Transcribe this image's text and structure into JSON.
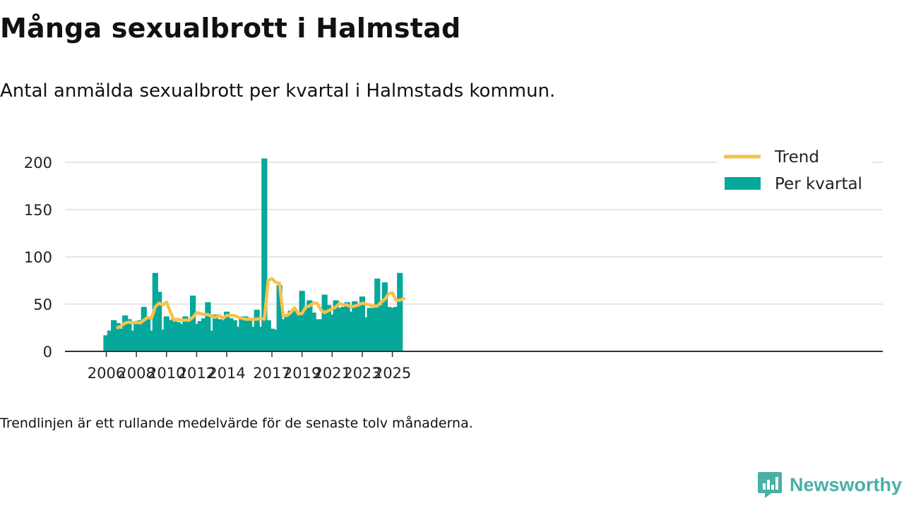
{
  "title": "Många sexualbrott i Halmstad",
  "subtitle": "Antal anmälda sexualbrott per kvartal i Halmstads kommun.",
  "footnote": "Trendlinjen är ett rullande medelvärde för de senaste tolv månaderna.",
  "brand": "Newsworthy",
  "colors": {
    "bar": "#05a89a",
    "trend": "#f5c24c",
    "brand": "#49b0a6"
  },
  "chart_data": {
    "type": "bar",
    "title": "Många sexualbrott i Halmstad",
    "xlabel": "",
    "ylabel": "",
    "ylim": [
      0,
      210
    ],
    "yticks": [
      0,
      50,
      100,
      150,
      200
    ],
    "grid": true,
    "legend_position": "top-right",
    "x_tick_labels": [
      {
        "label": "2006",
        "quarter": 0
      },
      {
        "label": "2008",
        "quarter": 8
      },
      {
        "label": "2010",
        "quarter": 16
      },
      {
        "label": "2012",
        "quarter": 24
      },
      {
        "label": "2014",
        "quarter": 32
      },
      {
        "label": "2017",
        "quarter": 44
      },
      {
        "label": "2019",
        "quarter": 52
      },
      {
        "label": "2021",
        "quarter": 60
      },
      {
        "label": "2023",
        "quarter": 68
      },
      {
        "label": "2025",
        "quarter": 76
      }
    ],
    "series": [
      {
        "name": "Per kvartal",
        "kind": "bar",
        "start_quarter": 0,
        "values": [
          17,
          22,
          33,
          30,
          24,
          38,
          34,
          22,
          29,
          33,
          47,
          35,
          22,
          83,
          63,
          23,
          37,
          33,
          35,
          31,
          29,
          37,
          33,
          59,
          29,
          32,
          35,
          52,
          22,
          39,
          34,
          33,
          42,
          35,
          33,
          26,
          37,
          37,
          33,
          26,
          44,
          26,
          204,
          33,
          24,
          23,
          70,
          34,
          38,
          43,
          43,
          38,
          64,
          44,
          54,
          41,
          34,
          34,
          60,
          49,
          39,
          54,
          46,
          47,
          52,
          42,
          53,
          48,
          58,
          36,
          46,
          46,
          77,
          49,
          73,
          47,
          46,
          47,
          83
        ]
      },
      {
        "name": "Trend",
        "kind": "line",
        "start_quarter": 3,
        "values": [
          25,
          27,
          30,
          31,
          30,
          31,
          30,
          33,
          36,
          35,
          47,
          51,
          49,
          52,
          42,
          33,
          34,
          33,
          33,
          33,
          36,
          41,
          40,
          39,
          39,
          37,
          36,
          38,
          35,
          38,
          38,
          38,
          36,
          35,
          34,
          34,
          34,
          34,
          35,
          34,
          75,
          77,
          73,
          72,
          38,
          38,
          41,
          46,
          40,
          40,
          47,
          48,
          51,
          51,
          44,
          41,
          43,
          45,
          47,
          51,
          49,
          49,
          47,
          48,
          49,
          51,
          50,
          49,
          48,
          48,
          52,
          55,
          61,
          62,
          54,
          54,
          56
        ]
      }
    ]
  }
}
